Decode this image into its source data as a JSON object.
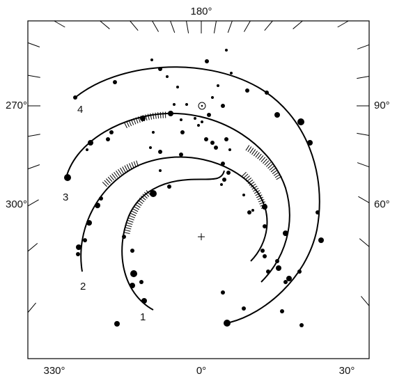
{
  "axis_labels": {
    "top": "180°",
    "left_upper": "270°",
    "left_lower": "300°",
    "right_upper": "90°",
    "right_lower": "60°",
    "bottom_left": "330°",
    "bottom_center": "0°",
    "bottom_right": "30°"
  },
  "arm_labels": [
    "1",
    "2",
    "3",
    "4"
  ]
}
